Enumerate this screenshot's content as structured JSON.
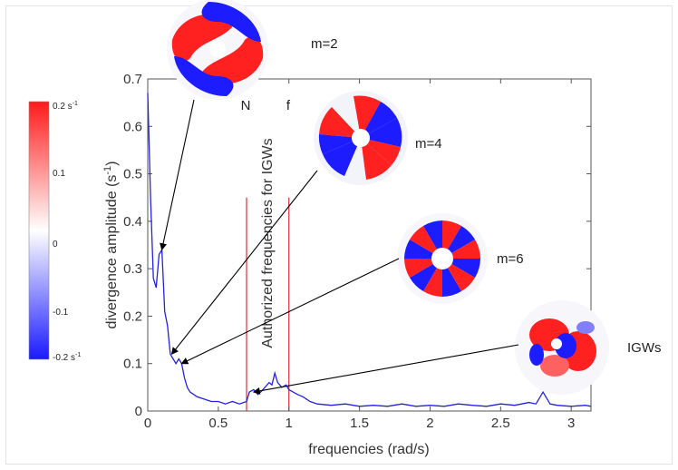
{
  "chart_data": {
    "type": "line",
    "xlabel": "frequencies (rad/s)",
    "ylabel_main": "divergence amplitude (s",
    "ylabel_sup": "-1",
    "ylabel_end": ")",
    "xlim": [
      0,
      3.14
    ],
    "ylim": [
      0,
      0.7
    ],
    "xticks": [
      0,
      0.5,
      1,
      1.5,
      2,
      2.5,
      3
    ],
    "xtick_labels": [
      "0",
      "0.5",
      "1",
      "1.5",
      "2",
      "2.5",
      "3"
    ],
    "yticks": [
      0,
      0.1,
      0.2,
      0.3,
      0.4,
      0.5,
      0.6,
      0.7
    ],
    "ytick_labels": [
      "0",
      "0.1",
      "0.2",
      "0.3",
      "0.4",
      "0.5",
      "0.6",
      "0.7"
    ],
    "grid": false,
    "series": [
      {
        "color": "#2222dd",
        "x": [
          0.0,
          0.02,
          0.04,
          0.06,
          0.08,
          0.1,
          0.12,
          0.14,
          0.16,
          0.18,
          0.2,
          0.22,
          0.24,
          0.26,
          0.28,
          0.3,
          0.35,
          0.4,
          0.45,
          0.5,
          0.55,
          0.6,
          0.65,
          0.7,
          0.72,
          0.75,
          0.78,
          0.8,
          0.83,
          0.86,
          0.88,
          0.9,
          0.92,
          0.95,
          0.98,
          1.0,
          1.03,
          1.06,
          1.1,
          1.15,
          1.2,
          1.3,
          1.4,
          1.5,
          1.6,
          1.7,
          1.8,
          1.9,
          2.0,
          2.1,
          2.2,
          2.3,
          2.4,
          2.5,
          2.6,
          2.7,
          2.75,
          2.8,
          2.82,
          2.85,
          2.9,
          3.0,
          3.1,
          3.14
        ],
        "y": [
          0.67,
          0.45,
          0.28,
          0.26,
          0.33,
          0.34,
          0.21,
          0.18,
          0.12,
          0.11,
          0.1,
          0.11,
          0.1,
          0.07,
          0.05,
          0.04,
          0.03,
          0.025,
          0.02,
          0.02,
          0.015,
          0.02,
          0.015,
          0.02,
          0.04,
          0.045,
          0.035,
          0.04,
          0.05,
          0.06,
          0.055,
          0.08,
          0.06,
          0.05,
          0.055,
          0.045,
          0.04,
          0.035,
          0.03,
          0.02,
          0.015,
          0.012,
          0.015,
          0.01,
          0.012,
          0.01,
          0.015,
          0.01,
          0.012,
          0.01,
          0.015,
          0.012,
          0.01,
          0.015,
          0.012,
          0.018,
          0.015,
          0.04,
          0.03,
          0.015,
          0.012,
          0.01,
          0.012,
          0.01
        ]
      }
    ],
    "vlines": [
      {
        "x": 0.7,
        "label": "N",
        "color": "#e03030"
      },
      {
        "x": 1.0,
        "label": "f",
        "color": "#e03030"
      }
    ],
    "band_label": "Authorized frequencies for IGWs",
    "annotations": [
      {
        "label": "m=2",
        "target": [
          0.1,
          0.34
        ]
      },
      {
        "label": "m=4",
        "target": [
          0.17,
          0.12
        ]
      },
      {
        "label": "m=6",
        "target": [
          0.24,
          0.1
        ]
      },
      {
        "label": "IGWs",
        "target": [
          0.75,
          0.04
        ]
      }
    ]
  },
  "colorbar": {
    "top_label": "0.2  s",
    "top_sup": "-1",
    "bottom_label": "-0.2 s",
    "bottom_sup": "-1",
    "tick_labels": [
      "0.1",
      "0",
      "-0.1"
    ],
    "colors": [
      "#ff1a1a",
      "#ffffff",
      "#1a1aff"
    ]
  }
}
